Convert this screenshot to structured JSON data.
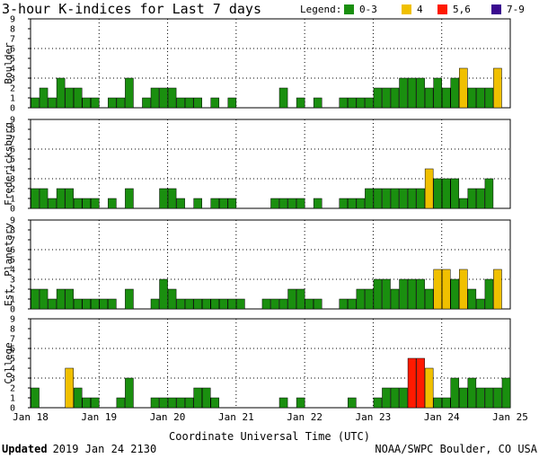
{
  "chart_data": {
    "type": "bar",
    "title": "3-hour K-indices for Last 7 days",
    "legend": {
      "label": "Legend:",
      "entries": [
        {
          "label": "0-3",
          "color": "#1a8f0f"
        },
        {
          "label": "4",
          "color": "#f0c000"
        },
        {
          "label": "5,6",
          "color": "#ff1a00"
        },
        {
          "label": "7-9",
          "color": "#3a0a8f"
        }
      ],
      "placement": "top-right"
    },
    "xlabel": "Coordinate Universal Time (UTC)",
    "x_ticks": [
      "Jan 18",
      "Jan 19",
      "Jan 20",
      "Jan 21",
      "Jan 22",
      "Jan 23",
      "Jan 24",
      "Jan 25"
    ],
    "y_ticks": [
      "0",
      "1",
      "2",
      "3",
      "4",
      "5",
      "6",
      "7",
      "8",
      "9"
    ],
    "ylim": [
      0,
      9
    ],
    "bars_per_panel": 56,
    "grid": true,
    "panels": [
      {
        "name": "Boulder",
        "values": [
          1,
          2,
          1,
          3,
          2,
          2,
          1,
          1,
          0,
          1,
          1,
          3,
          0,
          1,
          2,
          2,
          2,
          1,
          1,
          1,
          0,
          1,
          0,
          1,
          0,
          0,
          0,
          0,
          0,
          2,
          0,
          1,
          0,
          1,
          0,
          0,
          1,
          1,
          1,
          1,
          2,
          2,
          2,
          3,
          3,
          3,
          2,
          3,
          2,
          3,
          4,
          2,
          2,
          2,
          4,
          0
        ]
      },
      {
        "name": "Fredericksburg",
        "values": [
          2,
          2,
          1,
          2,
          2,
          1,
          1,
          1,
          0,
          1,
          0,
          2,
          0,
          0,
          0,
          2,
          2,
          1,
          0,
          1,
          0,
          1,
          1,
          1,
          0,
          0,
          0,
          0,
          1,
          1,
          1,
          1,
          0,
          1,
          0,
          0,
          1,
          1,
          1,
          2,
          2,
          2,
          2,
          2,
          2,
          2,
          4,
          3,
          3,
          3,
          1,
          2,
          2,
          3,
          0,
          0
        ]
      },
      {
        "name": "Est. Planetary",
        "values": [
          2,
          2,
          1,
          2,
          2,
          1,
          1,
          1,
          1,
          1,
          0,
          2,
          0,
          0,
          1,
          3,
          2,
          1,
          1,
          1,
          1,
          1,
          1,
          1,
          1,
          0,
          0,
          1,
          1,
          1,
          2,
          2,
          1,
          1,
          0,
          0,
          1,
          1,
          2,
          2,
          3,
          3,
          2,
          3,
          3,
          3,
          2,
          4,
          4,
          3,
          4,
          2,
          1,
          3,
          4,
          0
        ]
      },
      {
        "name": "College",
        "values": [
          2,
          0,
          0,
          0,
          4,
          2,
          1,
          1,
          0,
          0,
          1,
          3,
          0,
          0,
          1,
          1,
          1,
          1,
          1,
          2,
          2,
          1,
          0,
          0,
          0,
          0,
          0,
          0,
          0,
          1,
          0,
          1,
          0,
          0,
          0,
          0,
          0,
          1,
          0,
          0,
          1,
          2,
          2,
          2,
          5,
          5,
          4,
          1,
          1,
          3,
          2,
          3,
          2,
          2,
          2,
          3
        ]
      }
    ]
  },
  "footer": {
    "updated_label": "Updated",
    "updated_value": "2019 Jan 24 2130",
    "source": "NOAA/SWPC Boulder, CO USA"
  }
}
